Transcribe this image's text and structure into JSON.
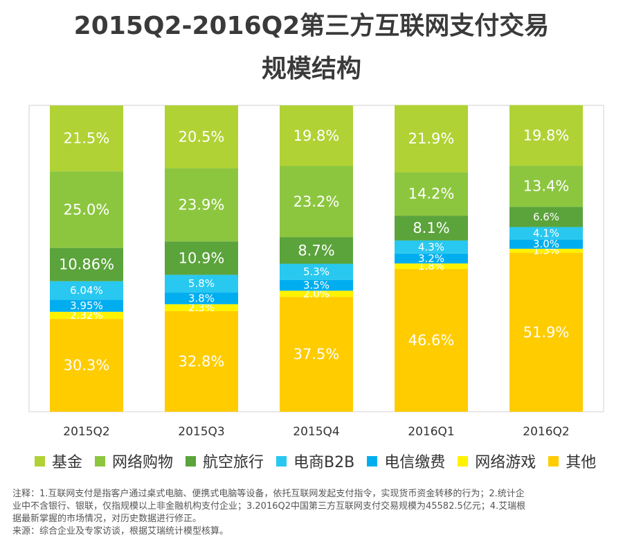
{
  "chart_data": {
    "type": "bar",
    "stacked": true,
    "title": "2015Q2-2016Q2第三方互联网支付交易",
    "title_line2": "规模结构",
    "categories": [
      "2015Q2",
      "2015Q3",
      "2015Q4",
      "2016Q1",
      "2016Q2"
    ],
    "ylim": [
      0,
      100
    ],
    "series": [
      {
        "name": "其他",
        "color": "#FFCC00",
        "values": [
          30.3,
          32.8,
          37.5,
          46.6,
          51.9
        ],
        "labels": [
          "30.3%",
          "32.8%",
          "37.5%",
          "46.6%",
          "51.9%"
        ]
      },
      {
        "name": "网络游戏",
        "color": "#FFF200",
        "values": [
          2.32,
          2.3,
          2.0,
          1.8,
          1.3
        ],
        "labels": [
          "2.32%",
          "2.3%",
          "2.0%",
          "1.8%",
          "1.3%"
        ]
      },
      {
        "name": "电信缴费",
        "color": "#00AEEF",
        "values": [
          3.95,
          3.8,
          3.5,
          3.2,
          3.0
        ],
        "labels": [
          "3.95%",
          "3.8%",
          "3.5%",
          "3.2%",
          "3.0%"
        ]
      },
      {
        "name": "电商B2B",
        "color": "#29C8F0",
        "values": [
          6.04,
          5.8,
          5.3,
          4.3,
          4.1
        ],
        "labels": [
          "6.04%",
          "5.8%",
          "5.3%",
          "4.3%",
          "4.1%"
        ]
      },
      {
        "name": "航空旅行",
        "color": "#5BA33B",
        "values": [
          10.86,
          10.9,
          8.7,
          8.1,
          6.6
        ],
        "labels": [
          "10.86%",
          "10.9%",
          "8.7%",
          "8.1%",
          "6.6%"
        ]
      },
      {
        "name": "网络购物",
        "color": "#8CC63F",
        "values": [
          25.0,
          23.9,
          23.2,
          14.2,
          13.4
        ],
        "labels": [
          "25.0%",
          "23.9%",
          "23.2%",
          "14.2%",
          "13.4%"
        ]
      },
      {
        "name": "基金",
        "color": "#B0D235",
        "values": [
          21.5,
          20.5,
          19.8,
          21.9,
          19.8
        ],
        "labels": [
          "21.5%",
          "20.5%",
          "19.8%",
          "21.9%",
          "19.8%"
        ]
      }
    ],
    "legend": [
      {
        "name": "基金",
        "color": "#B0D235"
      },
      {
        "name": "网络购物",
        "color": "#8CC63F"
      },
      {
        "name": "航空旅行",
        "color": "#5BA33B"
      },
      {
        "name": "电商B2B",
        "color": "#29C8F0"
      },
      {
        "name": "电信缴费",
        "color": "#00AEEF"
      },
      {
        "name": "网络游戏",
        "color": "#FFF200"
      },
      {
        "name": "其他",
        "color": "#FFCC00"
      }
    ]
  },
  "notes": {
    "line1": "注释：1.互联网支付是指客户通过桌式电脑、便携式电脑等设备，依托互联网发起支付指令，实现货币资金转移的行为；2.统计企",
    "line2": "业中不含银行、银联，仅指规模以上非金融机构支付企业；3.2016Q2中国第三方互联网支付交易规模为45582.5亿元；4.艾瑞根",
    "line3": "据最新掌握的市场情况，对历史数据进行修正。",
    "source": "来源：综合企业及专家访谈，根据艾瑞统计模型核算。"
  }
}
